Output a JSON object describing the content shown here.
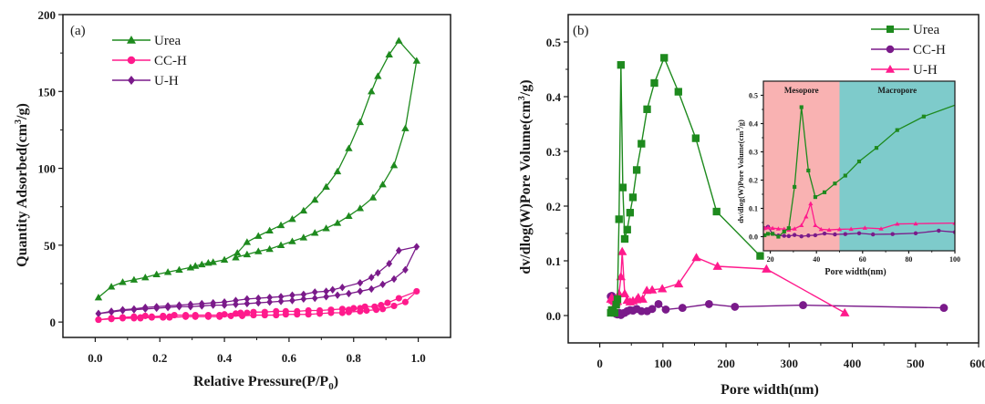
{
  "colors": {
    "urea": "#1e8a1e",
    "cch_a": "#ff1a8c",
    "uh_a": "#7a1a8a",
    "cch_b": "#7a1a8a",
    "uh_b": "#ff1a8c",
    "mesopore_fill": "#f9b2b2",
    "macropore_fill": "#7ecbcb",
    "axis": "#1a1a1a"
  },
  "chart_data": [
    {
      "id": "a",
      "type": "line",
      "panel_label": "(a)",
      "title": "",
      "xlabel": "Relative Pressure(P/P",
      "xlabel_sub": "0",
      "xlabel_end": ")",
      "ylabel": "Quantity Adsorbed(cm",
      "ylabel_sup": "3",
      "ylabel_end": "/g)",
      "xlim": [
        -0.1,
        1.1
      ],
      "ylim": [
        -10,
        200
      ],
      "xticks": [
        0.0,
        0.2,
        0.4,
        0.6,
        0.8,
        1.0
      ],
      "xtick_labels": [
        "0.0",
        "0.2",
        "0.4",
        "0.6",
        "0.8",
        "1.0"
      ],
      "yticks": [
        0,
        50,
        100,
        150,
        200
      ],
      "ytick_labels": [
        "0",
        "50",
        "100",
        "150",
        "200"
      ],
      "legend_position": "top-left",
      "series": [
        {
          "name": "Urea",
          "marker": "triangle",
          "color_key": "urea",
          "x": [
            0.01,
            0.05,
            0.085,
            0.12,
            0.155,
            0.19,
            0.225,
            0.26,
            0.295,
            0.31,
            0.33,
            0.35,
            0.365,
            0.4,
            0.44,
            0.47,
            0.505,
            0.54,
            0.575,
            0.61,
            0.645,
            0.68,
            0.715,
            0.75,
            0.785,
            0.82,
            0.855,
            0.875,
            0.91,
            0.94,
            0.995,
            0.96,
            0.925,
            0.89,
            0.86,
            0.82,
            0.785,
            0.75,
            0.715,
            0.68,
            0.645,
            0.61,
            0.575,
            0.54,
            0.505,
            0.47,
            0.435
          ],
          "y": [
            16,
            23,
            26,
            27.5,
            29,
            31,
            32.5,
            34,
            35.5,
            36.5,
            37.5,
            38.5,
            39,
            40.5,
            45,
            52,
            56,
            59.5,
            63,
            67,
            72.5,
            79.5,
            88,
            98,
            113,
            130,
            150,
            160,
            174,
            183,
            170,
            126,
            102,
            89.5,
            81,
            74,
            69,
            64.5,
            61,
            58,
            55,
            52.5,
            50,
            47.5,
            46,
            44,
            42
          ]
        },
        {
          "name": "CC-H",
          "marker": "circle",
          "color_key": "cch_a",
          "x": [
            0.01,
            0.05,
            0.085,
            0.12,
            0.14,
            0.155,
            0.175,
            0.21,
            0.23,
            0.245,
            0.28,
            0.31,
            0.35,
            0.385,
            0.4,
            0.435,
            0.45,
            0.47,
            0.49,
            0.525,
            0.56,
            0.59,
            0.625,
            0.66,
            0.695,
            0.73,
            0.765,
            0.785,
            0.8,
            0.82,
            0.835,
            0.865,
            0.885,
            0.905,
            0.94,
            0.995,
            0.96,
            0.925,
            0.89,
            0.87,
            0.84,
            0.82,
            0.785,
            0.765,
            0.73,
            0.695,
            0.66,
            0.625,
            0.59,
            0.56,
            0.525,
            0.49,
            0.455,
            0.42,
            0.385,
            0.35,
            0.31,
            0.28,
            0.23,
            0.21,
            0.175,
            0.14,
            0.12,
            0.085,
            0.05,
            0.01
          ],
          "y": [
            1.5,
            2.5,
            3,
            3.5,
            3,
            4,
            3.5,
            4,
            3.5,
            4.5,
            4.5,
            4.5,
            4.5,
            4.5,
            5,
            5.5,
            6,
            6,
            6.5,
            6.5,
            7,
            7,
            7,
            7.5,
            7.5,
            8,
            8.5,
            8,
            9,
            9,
            10,
            10,
            11,
            12.5,
            15.5,
            20,
            13,
            10.5,
            8.5,
            8,
            7.5,
            7,
            6.5,
            6,
            6,
            5.5,
            5,
            5,
            5,
            4.5,
            4.5,
            4.5,
            4,
            4,
            3.5,
            3.5,
            3.5,
            3.5,
            3,
            3,
            3,
            2.5,
            2.5,
            2.5,
            2,
            1.5
          ]
        },
        {
          "name": "U-H",
          "marker": "diamond",
          "color_key": "uh_a",
          "x": [
            0.01,
            0.05,
            0.085,
            0.12,
            0.155,
            0.19,
            0.225,
            0.26,
            0.295,
            0.33,
            0.365,
            0.4,
            0.435,
            0.47,
            0.505,
            0.54,
            0.575,
            0.61,
            0.645,
            0.68,
            0.715,
            0.735,
            0.765,
            0.82,
            0.855,
            0.875,
            0.91,
            0.94,
            0.995,
            0.96,
            0.925,
            0.89,
            0.855,
            0.82,
            0.785,
            0.75,
            0.715,
            0.68,
            0.645,
            0.61,
            0.575,
            0.54,
            0.505,
            0.47,
            0.435,
            0.4,
            0.365,
            0.33,
            0.295,
            0.26,
            0.225,
            0.19,
            0.155,
            0.12,
            0.085,
            0.05,
            0.01
          ],
          "y": [
            5.5,
            7,
            8,
            8.5,
            9.5,
            10,
            10.5,
            11,
            11.5,
            12,
            12.5,
            13,
            14,
            15,
            15.5,
            16,
            16.5,
            17.5,
            18,
            19.5,
            20,
            21,
            22.5,
            25.5,
            29,
            32,
            38,
            46.5,
            49,
            34,
            28,
            24.5,
            21.5,
            20,
            18.5,
            17.5,
            16.5,
            15.5,
            15,
            14,
            13.5,
            13,
            12.5,
            12,
            11.5,
            11,
            11,
            10.5,
            10,
            10,
            9.5,
            9,
            8.5,
            8,
            7.5,
            6.5,
            5.5
          ]
        }
      ]
    },
    {
      "id": "b",
      "type": "line",
      "panel_label": "(b)",
      "title": "",
      "xlabel": "Pore width(nm)",
      "ylabel": "dv/dlog(W)Pore Volume(cm",
      "ylabel_sup": "3",
      "ylabel_end": "/g)",
      "xlim": [
        -50,
        600
      ],
      "ylim": [
        -0.05,
        0.55
      ],
      "xticks": [
        0,
        100,
        200,
        300,
        400,
        500,
        600
      ],
      "xtick_labels": [
        "0",
        "100",
        "200",
        "300",
        "400",
        "500",
        "600"
      ],
      "yticks": [
        0.0,
        0.1,
        0.2,
        0.3,
        0.4,
        0.5
      ],
      "ytick_labels": [
        "0.0",
        "0.1",
        "0.2",
        "0.3",
        "0.4",
        "0.5"
      ],
      "legend_position": "top-right",
      "series": [
        {
          "name": "Urea",
          "marker": "square",
          "color_key": "urea",
          "x": [
            17.5,
            19,
            21,
            23.5,
            26,
            28,
            30.5,
            33.5,
            36.5,
            39.5,
            43.5,
            48,
            52.5,
            58.5,
            66,
            75,
            86.5,
            102,
            124.5,
            152,
            185,
            254
          ],
          "y": [
            0.005,
            0.01,
            0.01,
            0.005,
            0.02,
            0.03,
            0.176,
            0.458,
            0.234,
            0.14,
            0.157,
            0.188,
            0.216,
            0.266,
            0.314,
            0.377,
            0.425,
            0.471,
            0.409,
            0.324,
            0.19,
            0.109
          ]
        },
        {
          "name": "CC-H",
          "marker": "circle",
          "color_key": "cch_b",
          "x": [
            17.5,
            19,
            21,
            23.5,
            26,
            28,
            30.5,
            33.5,
            36.5,
            39.5,
            43.5,
            48,
            52.5,
            58.5,
            66,
            75,
            83,
            93,
            104.5,
            131,
            173,
            214,
            322,
            545
          ],
          "y": [
            0.035,
            0.036,
            0.01,
            0.005,
            0.003,
            0.002,
            0.005,
            0.001,
            0.004,
            0.005,
            0.008,
            0.01,
            0.009,
            0.012,
            0.008,
            0.008,
            0.012,
            0.021,
            0.011,
            0.014,
            0.021,
            0.016,
            0.019,
            0.014
          ]
        },
        {
          "name": "U-H",
          "marker": "triangle",
          "color_key": "uh_b",
          "x": [
            17.5,
            19,
            21,
            23.5,
            26,
            28,
            30.5,
            33.5,
            35.5,
            39.5,
            43.5,
            48,
            52.5,
            58.5,
            61,
            68,
            74.5,
            83,
            99,
            125,
            153,
            186.5,
            264,
            388
          ],
          "y": [
            0.03,
            0.033,
            0.028,
            0.026,
            0.024,
            0.026,
            0.04,
            0.071,
            0.117,
            0.04,
            0.028,
            0.025,
            0.027,
            0.029,
            0.033,
            0.03,
            0.046,
            0.047,
            0.049,
            0.058,
            0.106,
            0.09,
            0.085,
            0.005
          ]
        }
      ],
      "inset": {
        "xlabel": "Pore width(nm)",
        "ylabel": "dv/dlog(W)Pore Volume(cm",
        "ylabel_sup": "3",
        "ylabel_end": "/g)",
        "xlim": [
          17,
          100
        ],
        "ylim": [
          -0.05,
          0.55
        ],
        "xticks": [
          20,
          40,
          60,
          80,
          100
        ],
        "xtick_labels": [
          "20",
          "40",
          "60",
          "80",
          "100"
        ],
        "yticks": [
          0.0,
          0.1,
          0.2,
          0.3,
          0.4,
          0.5
        ],
        "ytick_labels": [
          "0.0",
          "0.1",
          "0.2",
          "0.3",
          "0.4",
          "0.5"
        ],
        "regions": [
          {
            "label": "Mesopore",
            "from": 17,
            "to": 50,
            "color_key": "mesopore_fill"
          },
          {
            "label": "Macropore",
            "from": 50,
            "to": 100,
            "color_key": "macropore_fill"
          }
        ],
        "series": [
          {
            "name": "Urea",
            "marker": "square",
            "color_key": "urea",
            "x": [
              17.5,
              19,
              21,
              23.5,
              26,
              28,
              30.5,
              33.5,
              36.5,
              39.5,
              43.5,
              48,
              52.5,
              58.5,
              66,
              75,
              86.5,
              102
            ],
            "y": [
              0.005,
              0.01,
              0.01,
              0.0,
              0.018,
              0.03,
              0.176,
              0.458,
              0.234,
              0.14,
              0.157,
              0.188,
              0.216,
              0.266,
              0.314,
              0.377,
              0.425,
              0.471
            ]
          },
          {
            "name": "CC-H",
            "marker": "circle",
            "color_key": "cch_b",
            "x": [
              17.5,
              19,
              21,
              23.5,
              26,
              28,
              30.5,
              33.5,
              36.5,
              39.5,
              43.5,
              48,
              52.5,
              58.5,
              64.5,
              73,
              83,
              93,
              100
            ],
            "y": [
              0.03,
              0.035,
              0.01,
              0.004,
              0.003,
              0.002,
              0.006,
              0.001,
              0.004,
              0.005,
              0.011,
              0.008,
              0.009,
              0.012,
              0.008,
              0.009,
              0.012,
              0.021,
              0.016
            ]
          },
          {
            "name": "U-H",
            "marker": "triangle",
            "color_key": "uh_b",
            "x": [
              17.5,
              19,
              21,
              23.5,
              26,
              28,
              30.5,
              33.5,
              35.5,
              37.5,
              39.5,
              42,
              45.5,
              50,
              55,
              61,
              68,
              75,
              83,
              100
            ],
            "y": [
              0.03,
              0.032,
              0.03,
              0.028,
              0.027,
              0.024,
              0.028,
              0.04,
              0.071,
              0.117,
              0.04,
              0.026,
              0.024,
              0.026,
              0.027,
              0.031,
              0.028,
              0.045,
              0.046,
              0.048
            ]
          }
        ]
      }
    }
  ]
}
